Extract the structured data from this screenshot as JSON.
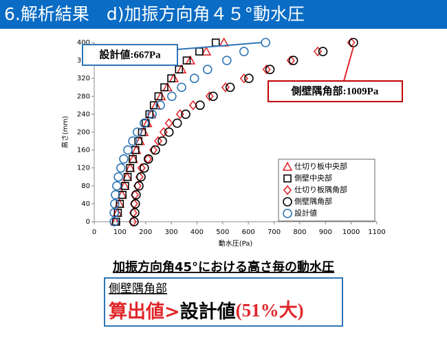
{
  "slide": {
    "title": "6.解析結果　d)加振方向角４５°動水圧",
    "heading": "加振方向角45°における高さ毎の動水圧",
    "box_label": "側壁隅角部",
    "conclusion": [
      "算出値>",
      "設計値",
      "(51%大)"
    ]
  },
  "chart_data": {
    "type": "scatter",
    "xlabel": "動水圧(Pa)",
    "ylabel": "高さ(mm)",
    "xlim": [
      0,
      1100
    ],
    "xticks": [
      0,
      100,
      200,
      300,
      400,
      500,
      600,
      700,
      800,
      900,
      1000,
      1100
    ],
    "ylim": [
      0,
      400
    ],
    "yticks": [
      0,
      40,
      80,
      120,
      160,
      200,
      240,
      280,
      320,
      360,
      400
    ],
    "y": [
      0,
      20,
      40,
      60,
      80,
      100,
      120,
      140,
      160,
      180,
      200,
      220,
      240,
      260,
      280,
      300,
      320,
      340,
      360,
      380,
      400
    ],
    "series": [
      {
        "name": "仕切り板中央部",
        "color": "#e0262a",
        "marker": "triangle",
        "x": [
          82,
          90,
          98,
          108,
          118,
          128,
          140,
          152,
          164,
          178,
          193,
          207,
          222,
          240,
          260,
          285,
          310,
          340,
          374,
          436,
          505
        ]
      },
      {
        "name": "側壁中央部",
        "color": "#000000",
        "marker": "square",
        "x": [
          85,
          92,
          100,
          110,
          120,
          130,
          140,
          150,
          160,
          172,
          186,
          200,
          215,
          232,
          250,
          273,
          300,
          330,
          360,
          409,
          473
        ]
      },
      {
        "name": "仕切り板隅角部",
        "color": "#e0262a",
        "marker": "diamond",
        "x": [
          150,
          152,
          155,
          158,
          168,
          176,
          184,
          209,
          230,
          249,
          270,
          291,
          334,
          385,
          449,
          511,
          583,
          671,
          765,
          870,
          1000
        ]
      },
      {
        "name": "側壁隅角部",
        "color": "#000000",
        "marker": "circle",
        "x": [
          155,
          158,
          160,
          163,
          174,
          182,
          195,
          211,
          238,
          265,
          291,
          323,
          356,
          412,
          463,
          529,
          602,
          684,
          775,
          890,
          1009
        ]
      },
      {
        "name": "設計値",
        "color": "#2e75b6",
        "marker": "circle",
        "x": [
          78,
          78,
          80,
          83,
          88,
          94,
          104,
          115,
          131,
          150,
          168,
          195,
          225,
          257,
          302,
          340,
          390,
          441,
          516,
          583,
          667
        ]
      }
    ],
    "annotations": [
      "設計値:667Pa",
      "側壁隅角部:1009Pa"
    ],
    "grid": false
  }
}
